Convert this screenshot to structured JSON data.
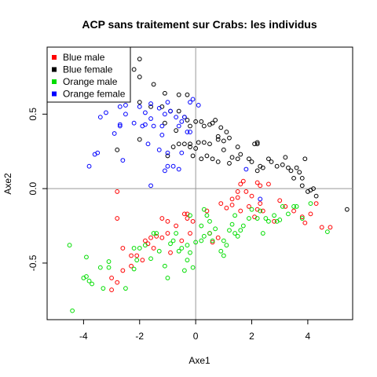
{
  "chart_data": {
    "type": "scatter",
    "title": "ACP sans traitement sur Crabs: les individus",
    "xlabel": "Axe1",
    "ylabel": "Axe2",
    "xlim": [
      -5.3,
      5.6
    ],
    "ylim": [
      -0.88,
      0.95
    ],
    "xticks": [
      -4,
      -2,
      0,
      2,
      4
    ],
    "yticks": [
      -0.5,
      0.0,
      0.5
    ],
    "xtick_labels": [
      "-4",
      "-2",
      "0",
      "2",
      "4"
    ],
    "ytick_labels": [
      "-0.5",
      "0.0",
      "0.5"
    ],
    "reference_lines": {
      "x": 0,
      "y": 0,
      "color": "#999999"
    },
    "legend": {
      "position": "top-left",
      "entries": [
        {
          "label": "Blue male",
          "color": "#ff0000"
        },
        {
          "label": "Blue female",
          "color": "#000000"
        },
        {
          "label": "Orange male",
          "color": "#00dd00"
        },
        {
          "label": "Orange female",
          "color": "#0000ff"
        }
      ]
    },
    "series": [
      {
        "name": "Blue male",
        "color": "#ff0000",
        "points": [
          [
            -2.8,
            -0.02
          ],
          [
            -2.8,
            -0.2
          ],
          [
            -2.3,
            -0.45
          ],
          [
            -2.6,
            -0.4
          ],
          [
            -3.0,
            -0.6
          ],
          [
            -2.8,
            -0.63
          ],
          [
            -3.0,
            -0.68
          ],
          [
            -2.3,
            -0.52
          ],
          [
            -2.1,
            -0.45
          ],
          [
            -1.9,
            -0.48
          ],
          [
            -1.7,
            -0.37
          ],
          [
            -1.6,
            -0.33
          ],
          [
            -1.4,
            -0.32
          ],
          [
            -1.2,
            -0.33
          ],
          [
            -1.0,
            -0.3
          ],
          [
            -1.5,
            -0.4
          ],
          [
            -1.0,
            -0.22
          ],
          [
            -0.7,
            -0.25
          ],
          [
            -0.5,
            -0.35
          ],
          [
            -1.2,
            -0.2
          ],
          [
            -0.3,
            -0.17
          ],
          [
            -0.2,
            -0.3
          ],
          [
            -0.1,
            -0.22
          ],
          [
            -0.4,
            -0.17
          ],
          [
            -0.3,
            -0.2
          ],
          [
            0.5,
            -0.3
          ],
          [
            0.6,
            -0.36
          ],
          [
            0.8,
            -0.33
          ],
          [
            0.9,
            -0.1
          ],
          [
            1.1,
            -0.13
          ],
          [
            1.3,
            -0.11
          ],
          [
            1.5,
            -0.06
          ],
          [
            1.6,
            -0.15
          ],
          [
            1.9,
            -0.12
          ],
          [
            2.1,
            -0.19
          ],
          [
            2.2,
            -0.14
          ],
          [
            2.3,
            -0.1
          ],
          [
            2.6,
            0.03
          ],
          [
            2.2,
            0.04
          ],
          [
            1.6,
            0.03
          ],
          [
            1.7,
            0.05
          ],
          [
            1.5,
            -0.02
          ],
          [
            1.8,
            -0.02
          ],
          [
            2.0,
            -0.05
          ],
          [
            2.4,
            -0.15
          ],
          [
            2.8,
            -0.22
          ],
          [
            3.0,
            -0.08
          ],
          [
            3.2,
            -0.12
          ],
          [
            3.5,
            -0.15
          ],
          [
            3.8,
            -0.19
          ],
          [
            3.9,
            -0.23
          ],
          [
            4.1,
            -0.17
          ],
          [
            4.3,
            -0.1
          ],
          [
            4.5,
            -0.26
          ],
          [
            4.8,
            -0.26
          ],
          [
            1.3,
            -0.07
          ],
          [
            0.4,
            -0.15
          ],
          [
            2.3,
            0.02
          ],
          [
            -0.9,
            -0.43
          ],
          [
            -1.8,
            -0.35
          ],
          [
            -2.6,
            -0.55
          ]
        ]
      },
      {
        "name": "Blue female",
        "color": "#000000",
        "points": [
          [
            -2.0,
            0.87
          ],
          [
            -2.2,
            0.8
          ],
          [
            -2.0,
            0.75
          ],
          [
            -1.5,
            0.7
          ],
          [
            -1.1,
            0.64
          ],
          [
            -0.6,
            0.63
          ],
          [
            -0.3,
            0.63
          ],
          [
            -2.0,
            0.58
          ],
          [
            -1.6,
            0.55
          ],
          [
            -1.2,
            0.55
          ],
          [
            -0.9,
            0.52
          ],
          [
            -0.6,
            0.52
          ],
          [
            -0.4,
            0.48
          ],
          [
            -0.3,
            0.46
          ],
          [
            -0.2,
            0.42
          ],
          [
            0.0,
            0.45
          ],
          [
            0.2,
            0.45
          ],
          [
            0.3,
            0.42
          ],
          [
            0.5,
            0.43
          ],
          [
            0.6,
            0.44
          ],
          [
            0.7,
            0.46
          ],
          [
            0.9,
            0.41
          ],
          [
            1.1,
            0.38
          ],
          [
            1.2,
            0.34
          ],
          [
            1.0,
            0.32
          ],
          [
            0.8,
            0.33
          ],
          [
            0.5,
            0.3
          ],
          [
            0.3,
            0.31
          ],
          [
            0.1,
            0.31
          ],
          [
            -0.2,
            0.3
          ],
          [
            -0.4,
            0.3
          ],
          [
            -0.6,
            0.3
          ],
          [
            -0.8,
            0.28
          ],
          [
            -1.0,
            0.22
          ],
          [
            -2.0,
            0.33
          ],
          [
            -2.8,
            0.26
          ],
          [
            -0.2,
            0.28
          ],
          [
            0.0,
            0.27
          ],
          [
            0.2,
            0.2
          ],
          [
            0.4,
            0.22
          ],
          [
            0.6,
            0.2
          ],
          [
            0.8,
            0.18
          ],
          [
            1.2,
            0.17
          ],
          [
            1.3,
            0.21
          ],
          [
            1.5,
            0.2
          ],
          [
            1.6,
            0.23
          ],
          [
            1.9,
            0.2
          ],
          [
            2.1,
            0.3
          ],
          [
            2.2,
            0.31
          ],
          [
            2.2,
            0.3
          ],
          [
            2.0,
            0.18
          ],
          [
            2.3,
            0.15
          ],
          [
            2.2,
            0.12
          ],
          [
            2.4,
            0.14
          ],
          [
            2.6,
            0.2
          ],
          [
            2.7,
            0.18
          ],
          [
            2.9,
            0.15
          ],
          [
            3.1,
            0.16
          ],
          [
            3.2,
            0.21
          ],
          [
            3.3,
            0.14
          ],
          [
            3.4,
            0.12
          ],
          [
            3.6,
            0.14
          ],
          [
            3.7,
            0.11
          ],
          [
            3.8,
            0.07
          ],
          [
            3.8,
            0.02
          ],
          [
            4.0,
            -0.02
          ],
          [
            4.1,
            -0.01
          ],
          [
            4.3,
            -0.05
          ],
          [
            5.4,
            -0.14
          ],
          [
            3.9,
            0.2
          ],
          [
            4.2,
            0.0
          ],
          [
            3.5,
            0.07
          ],
          [
            1.5,
            0.28
          ],
          [
            0.8,
            0.35
          ],
          [
            1.0,
            0.26
          ],
          [
            -0.1,
            0.22
          ],
          [
            -1.1,
            0.44
          ],
          [
            -0.7,
            0.39
          ]
        ]
      },
      {
        "name": "Orange male",
        "color": "#00dd00",
        "points": [
          [
            -4.5,
            -0.38
          ],
          [
            -4.4,
            -0.82
          ],
          [
            -3.9,
            -0.59
          ],
          [
            -3.8,
            -0.62
          ],
          [
            -3.7,
            -0.64
          ],
          [
            -4.0,
            -0.6
          ],
          [
            -3.9,
            -0.46
          ],
          [
            -3.3,
            -0.67
          ],
          [
            -3.4,
            -0.53
          ],
          [
            -3.1,
            -0.53
          ],
          [
            -3.1,
            -0.49
          ],
          [
            -2.5,
            -0.67
          ],
          [
            -2.2,
            -0.54
          ],
          [
            -2.1,
            -0.48
          ],
          [
            -2.0,
            -0.4
          ],
          [
            -1.8,
            -0.38
          ],
          [
            -1.6,
            -0.47
          ],
          [
            -1.5,
            -0.3
          ],
          [
            -1.3,
            -0.42
          ],
          [
            -1.1,
            -0.52
          ],
          [
            -1.0,
            -0.6
          ],
          [
            -0.9,
            -0.37
          ],
          [
            -0.8,
            -0.35
          ],
          [
            -0.6,
            -0.42
          ],
          [
            -0.5,
            -0.4
          ],
          [
            -0.4,
            -0.55
          ],
          [
            -0.3,
            -0.48
          ],
          [
            -0.1,
            -0.53
          ],
          [
            0.0,
            -0.36
          ],
          [
            0.2,
            -0.35
          ],
          [
            0.3,
            -0.32
          ],
          [
            0.5,
            -0.3
          ],
          [
            0.6,
            -0.35
          ],
          [
            0.7,
            -0.27
          ],
          [
            0.9,
            -0.42
          ],
          [
            1.0,
            -0.35
          ],
          [
            1.1,
            -0.38
          ],
          [
            1.2,
            -0.28
          ],
          [
            1.3,
            -0.24
          ],
          [
            1.4,
            -0.18
          ],
          [
            1.5,
            -0.32
          ],
          [
            1.6,
            -0.28
          ],
          [
            1.7,
            -0.25
          ],
          [
            1.9,
            -0.2
          ],
          [
            2.0,
            -0.14
          ],
          [
            2.2,
            -0.2
          ],
          [
            2.3,
            -0.15
          ],
          [
            2.4,
            -0.3
          ],
          [
            2.5,
            -0.2
          ],
          [
            2.6,
            -0.22
          ],
          [
            2.8,
            -0.18
          ],
          [
            2.9,
            -0.22
          ],
          [
            3.0,
            -0.21
          ],
          [
            3.1,
            -0.12
          ],
          [
            3.3,
            -0.17
          ],
          [
            3.5,
            -0.12
          ],
          [
            3.6,
            -0.12
          ],
          [
            3.8,
            -0.2
          ],
          [
            4.1,
            -0.1
          ],
          [
            4.7,
            -0.29
          ],
          [
            0.3,
            -0.14
          ],
          [
            0.4,
            -0.18
          ],
          [
            0.5,
            -0.22
          ],
          [
            0.2,
            -0.25
          ],
          [
            -0.2,
            -0.43
          ],
          [
            -0.7,
            -0.3
          ],
          [
            -1.4,
            -0.3
          ],
          [
            -2.2,
            -0.4
          ],
          [
            -0.2,
            -0.18
          ],
          [
            -0.3,
            -0.38
          ],
          [
            1.0,
            -0.45
          ],
          [
            1.4,
            -0.3
          ]
        ]
      },
      {
        "name": "Orange female",
        "color": "#0000ff",
        "points": [
          [
            -3.8,
            0.15
          ],
          [
            -3.6,
            0.23
          ],
          [
            -3.5,
            0.24
          ],
          [
            -2.6,
            0.19
          ],
          [
            -2.7,
            0.42
          ],
          [
            -2.7,
            0.43
          ],
          [
            -3.2,
            0.51
          ],
          [
            -3.4,
            0.48
          ],
          [
            -2.9,
            0.37
          ],
          [
            -2.5,
            0.5
          ],
          [
            -2.5,
            0.56
          ],
          [
            -2.2,
            0.44
          ],
          [
            -2.0,
            0.55
          ],
          [
            -1.9,
            0.42
          ],
          [
            -1.8,
            0.51
          ],
          [
            -1.6,
            0.47
          ],
          [
            -1.6,
            0.57
          ],
          [
            -1.5,
            0.42
          ],
          [
            -1.3,
            0.54
          ],
          [
            -1.2,
            0.42
          ],
          [
            -1.1,
            0.5
          ],
          [
            -1.0,
            0.58
          ],
          [
            -0.9,
            0.52
          ],
          [
            -0.7,
            0.48
          ],
          [
            -0.6,
            0.42
          ],
          [
            -0.5,
            0.45
          ],
          [
            -0.4,
            0.48
          ],
          [
            -0.2,
            0.58
          ],
          [
            -0.1,
            0.6
          ],
          [
            0.1,
            0.56
          ],
          [
            -1.7,
            0.3
          ],
          [
            -1.3,
            0.26
          ],
          [
            -1.0,
            0.24
          ],
          [
            -0.8,
            0.15
          ],
          [
            -0.6,
            0.13
          ],
          [
            -1.6,
            0.02
          ],
          [
            -0.5,
            0.24
          ],
          [
            -1.1,
            0.12
          ],
          [
            -1.0,
            0.15
          ],
          [
            1.8,
            0.13
          ],
          [
            2.3,
            -0.07
          ],
          [
            -1.2,
            0.36
          ],
          [
            -1.8,
            0.43
          ],
          [
            -0.3,
            0.38
          ],
          [
            -0.2,
            0.38
          ],
          [
            -2.7,
            0.55
          ]
        ]
      }
    ]
  }
}
